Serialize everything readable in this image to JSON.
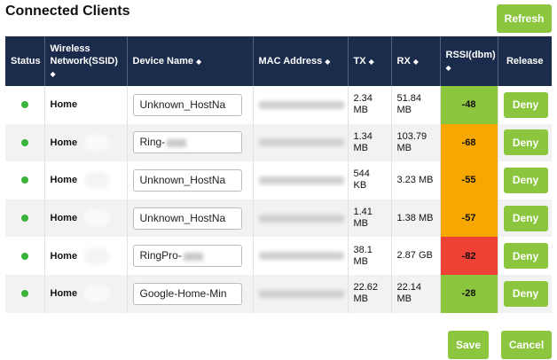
{
  "page_title": "Connected Clients",
  "refresh_label": "Refresh",
  "save_label": "Save",
  "cancel_label": "Cancel",
  "sort_indicator": "◆",
  "columns": {
    "status": "Status",
    "ssid": "Wireless Network(SSID)",
    "device": "Device Name",
    "mac": "MAC Address",
    "tx": "TX",
    "rx": "RX",
    "rssi": "RSSI(dbm)",
    "release": "Release"
  },
  "status_color": "#3ab33a",
  "rssi_colors": {
    "good": "#8cc63f",
    "fair": "#f6a800",
    "poor": "#ef4136"
  },
  "deny_label": "Deny",
  "rows": [
    {
      "ssid": "Home",
      "device_name": "Unknown_HostNa",
      "tx": "2.34 MB",
      "rx": "51.84 MB",
      "rssi": "-48",
      "rssi_level": "good"
    },
    {
      "ssid": "Home",
      "device_name": "Ring-",
      "tx": "1.34 MB",
      "rx": "103.79 MB",
      "rssi": "-68",
      "rssi_level": "fair"
    },
    {
      "ssid": "Home",
      "device_name": "Unknown_HostNa",
      "tx": "544 KB",
      "rx": "3.23 MB",
      "rssi": "-55",
      "rssi_level": "fair"
    },
    {
      "ssid": "Home",
      "device_name": "Unknown_HostNa",
      "tx": "1.41 MB",
      "rx": "1.38 MB",
      "rssi": "-57",
      "rssi_level": "fair"
    },
    {
      "ssid": "Home",
      "device_name": "RingPro-",
      "tx": "38.1 MB",
      "rx": "2.87 GB",
      "rssi": "-82",
      "rssi_level": "poor"
    },
    {
      "ssid": "Home",
      "device_name": "Google-Home-Min",
      "tx": "22.62 MB",
      "rx": "22.14 MB",
      "rssi": "-28",
      "rssi_level": "good"
    }
  ]
}
